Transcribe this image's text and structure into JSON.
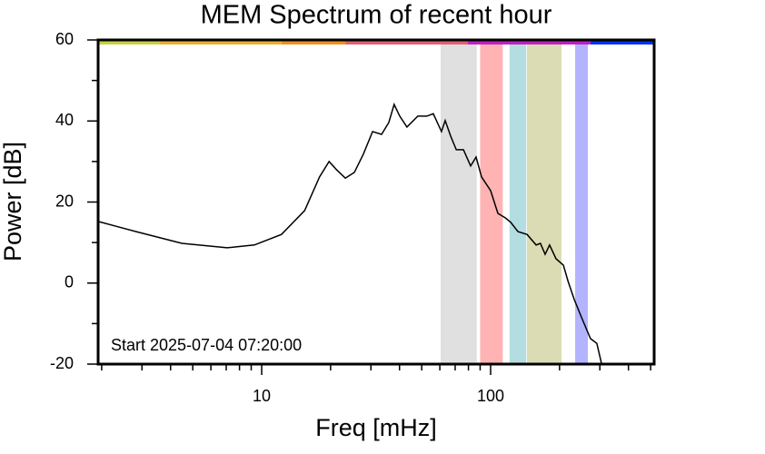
{
  "chart_data": {
    "type": "line",
    "title": "MEM Spectrum of recent hour",
    "x_label": "Freq [mHz]",
    "y_label": "Power [dB]",
    "annotation": "Start 2025-07-04 07:20:00",
    "x_log": true,
    "xlim": [
      1.93,
      518
    ],
    "ylim": [
      -20,
      60
    ],
    "xticks": [
      10,
      100
    ],
    "xminor_ticks": [
      2,
      3,
      4,
      5,
      6,
      7,
      8,
      9,
      20,
      30,
      40,
      50,
      60,
      70,
      80,
      90,
      200,
      300,
      400,
      500
    ],
    "yticks": [
      -20,
      0,
      20,
      40,
      60
    ],
    "yminor_ticks": [
      -10,
      10,
      30,
      50
    ],
    "bands": [
      {
        "xmin": 60.5,
        "xmax": 87,
        "color": "#e0e0e0"
      },
      {
        "xmin": 90,
        "xmax": 113,
        "color": "#ffb3b3"
      },
      {
        "xmin": 121,
        "xmax": 143,
        "color": "#b3dde0"
      },
      {
        "xmin": 144,
        "xmax": 204,
        "color": "#dcdcb4"
      },
      {
        "xmin": 234,
        "xmax": 266,
        "color": "#b3b3ff"
      }
    ],
    "top_bar": [
      {
        "xmin": 1.93,
        "xmax": 3.57,
        "color": "#c8d040"
      },
      {
        "xmin": 3.57,
        "xmax": 12.2,
        "color": "#e8b030"
      },
      {
        "xmin": 12.2,
        "xmax": 23.2,
        "color": "#f09020"
      },
      {
        "xmin": 23.2,
        "xmax": 79.6,
        "color": "#e06070"
      },
      {
        "xmin": 79.6,
        "xmax": 273,
        "color": "#c020c0"
      },
      {
        "xmin": 273,
        "xmax": 518,
        "color": "#0030ff"
      }
    ],
    "series": [
      {
        "name": "MEM spectrum",
        "color": "#000000",
        "x": [
          1.93,
          2.83,
          4.48,
          7.07,
          9.29,
          12.2,
          15.4,
          17.9,
          19.7,
          21.2,
          23.2,
          25.4,
          27.8,
          30.5,
          33.4,
          35.9,
          37.9,
          40.1,
          43.1,
          48.1,
          52.7,
          56.2,
          61.0,
          63.3,
          66.9,
          70.8,
          76.1,
          81.8,
          86.4,
          91.3,
          100,
          107.6,
          115.8,
          122.4,
          131.6,
          144.3,
          158,
          165,
          173,
          181,
          193,
          208,
          218,
          232,
          250,
          273,
          291,
          305
        ],
        "values": [
          15.2,
          12.7,
          9.8,
          8.7,
          9.4,
          12.0,
          17.9,
          26.2,
          30.0,
          28.0,
          25.9,
          27.3,
          31.8,
          37.4,
          36.7,
          39.6,
          44.1,
          41.2,
          38.5,
          41.2,
          41.2,
          41.8,
          37.4,
          40.1,
          36.3,
          32.9,
          32.9,
          28.9,
          31.1,
          26.2,
          22.8,
          17.2,
          16.1,
          15.0,
          12.7,
          12.0,
          9.4,
          9.8,
          7.1,
          9.4,
          6.0,
          4.4,
          0.4,
          -4.1,
          -8.6,
          -13.7,
          -14.9,
          -19.8
        ]
      }
    ]
  }
}
